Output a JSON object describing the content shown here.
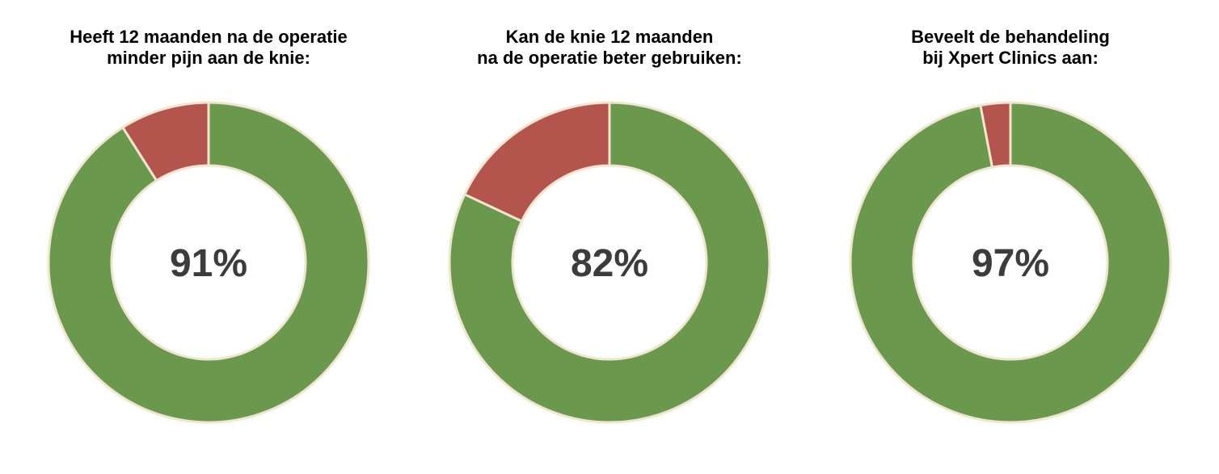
{
  "colors": {
    "positive": "#6a994e",
    "negative": "#b3554d",
    "outline": "#f0e6cf",
    "label": "#3c3c3c"
  },
  "chart_data": [
    {
      "type": "pie",
      "title_lines": [
        "Heeft 12 maanden na de operatie",
        "minder pijn aan de knie:"
      ],
      "center_label": "91%",
      "slices": [
        {
          "value": 91,
          "color": "#6a994e"
        },
        {
          "value": 9,
          "color": "#b3554d"
        }
      ]
    },
    {
      "type": "pie",
      "title_lines": [
        "Kan de knie 12 maanden",
        "na de operatie beter gebruiken:"
      ],
      "center_label": "82%",
      "slices": [
        {
          "value": 82,
          "color": "#6a994e"
        },
        {
          "value": 18,
          "color": "#b3554d"
        }
      ]
    },
    {
      "type": "pie",
      "title_lines": [
        "Beveelt de behandeling",
        "bij Xpert Clinics aan:"
      ],
      "center_label": "97%",
      "slices": [
        {
          "value": 97,
          "color": "#6a994e"
        },
        {
          "value": 3,
          "color": "#b3554d"
        }
      ]
    }
  ]
}
